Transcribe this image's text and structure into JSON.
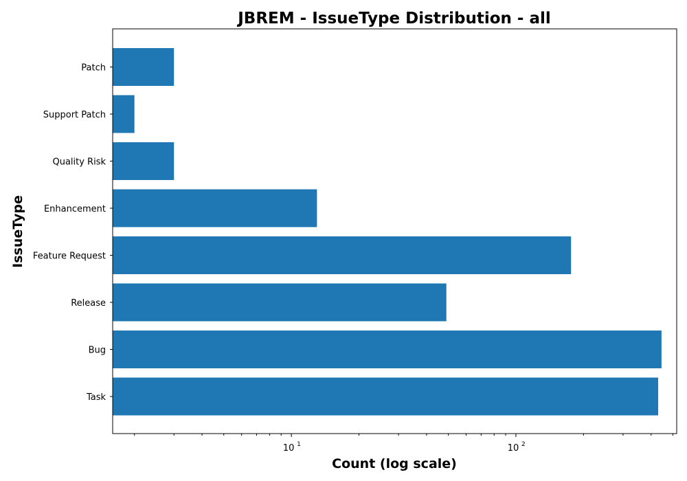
{
  "chart_data": {
    "type": "bar",
    "orientation": "horizontal",
    "title": "JBREM - IssueType Distribution - all",
    "xlabel": "Count (log scale)",
    "ylabel": "IssueType",
    "xscale": "log",
    "xlim": [
      1.6,
      520
    ],
    "categories": [
      "Task",
      "Bug",
      "Release",
      "Feature Request",
      "Enhancement",
      "Quality Risk",
      "Support Patch",
      "Patch"
    ],
    "values": [
      430,
      445,
      49,
      176,
      13,
      3,
      2,
      3
    ],
    "bar_color": "#1f77b4",
    "x_tick_labels": [
      {
        "value": 10,
        "base": "10",
        "exp": "1"
      },
      {
        "value": 100,
        "base": "10",
        "exp": "2"
      }
    ],
    "grid": false,
    "legend": "none"
  }
}
